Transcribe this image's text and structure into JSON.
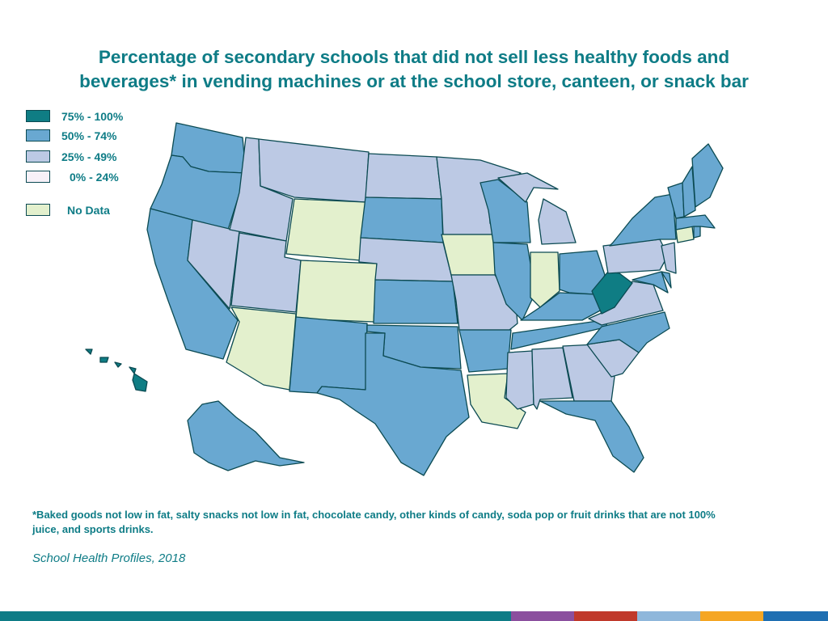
{
  "title": {
    "line1": "Percentage of secondary schools that did not sell less healthy foods and",
    "line2": "beverages* in vending machines or at the school store, canteen, or snack bar"
  },
  "legend": [
    {
      "label": "75% - 100%",
      "color": "#0f7d84"
    },
    {
      "label": "50% - 74%",
      "color": "#69a8d1"
    },
    {
      "label": "25% - 49%",
      "color": "#bcc9e4"
    },
    {
      "label": "0% - 24%",
      "color": "#f7f1f8"
    },
    {
      "label": "No Data",
      "color": "#e3f0cd"
    }
  ],
  "map_data": {
    "75% - 100%": [
      "West Virginia",
      "Hawaii"
    ],
    "50% - 74%": [
      "Washington",
      "Oregon",
      "California",
      "Alaska",
      "New Mexico",
      "Texas",
      "Oklahoma",
      "Kansas",
      "South Dakota",
      "Arkansas",
      "Tennessee",
      "Kentucky",
      "Ohio",
      "Illinois",
      "Wisconsin",
      "Florida",
      "North Carolina",
      "New York",
      "Vermont",
      "New Hampshire",
      "Maine",
      "Massachusetts",
      "Rhode Island",
      "Delaware",
      "Maryland"
    ],
    "25% - 49%": [
      "Idaho",
      "Montana",
      "Nevada",
      "Utah",
      "North Dakota",
      "Minnesota",
      "Nebraska",
      "Missouri",
      "Michigan",
      "Mississippi",
      "Alabama",
      "Georgia",
      "South Carolina",
      "Virginia",
      "Pennsylvania",
      "New Jersey"
    ],
    "0% - 24%": [],
    "No Data": [
      "Wyoming",
      "Colorado",
      "Arizona",
      "Iowa",
      "Indiana",
      "Louisiana",
      "Connecticut"
    ]
  },
  "footnote": "*Baked goods not low in fat, salty snacks not low in fat, chocolate candy, other kinds of candy, soda pop or fruit drinks that are not 100% juice, and sports drinks.",
  "source": "School Health Profiles, 2018",
  "bottom_bar_colors": [
    "#0e7c86",
    "#8b4f9e",
    "#c0392b",
    "#8fb7db",
    "#f5a623",
    "#1f6fb2"
  ],
  "colors": {
    "border": "#0b4a52",
    "text": "#0e7c86"
  }
}
